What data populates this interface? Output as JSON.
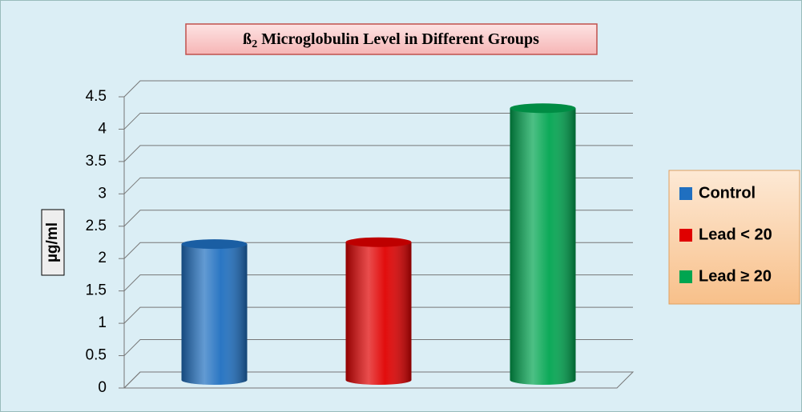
{
  "chart_data": {
    "type": "bar3d",
    "title": [
      "ß",
      "2",
      "Microglobulin Level in Different Groups"
    ],
    "y_label": "µg/ml",
    "series": [
      {
        "name": "Control",
        "color": "#1f6fc0",
        "values": [
          2.1
        ]
      },
      {
        "name": "Lead < 20",
        "color": "#e00000",
        "values": [
          2.13
        ]
      },
      {
        "name": "Lead ≥ 20",
        "color": "#00a550",
        "values": [
          4.2
        ]
      }
    ],
    "ylim": [
      0,
      4.5
    ],
    "yticks": [
      0,
      0.5,
      1,
      1.5,
      2,
      2.5,
      3,
      3.5,
      4,
      4.5
    ],
    "grid": true,
    "legend": "right"
  }
}
